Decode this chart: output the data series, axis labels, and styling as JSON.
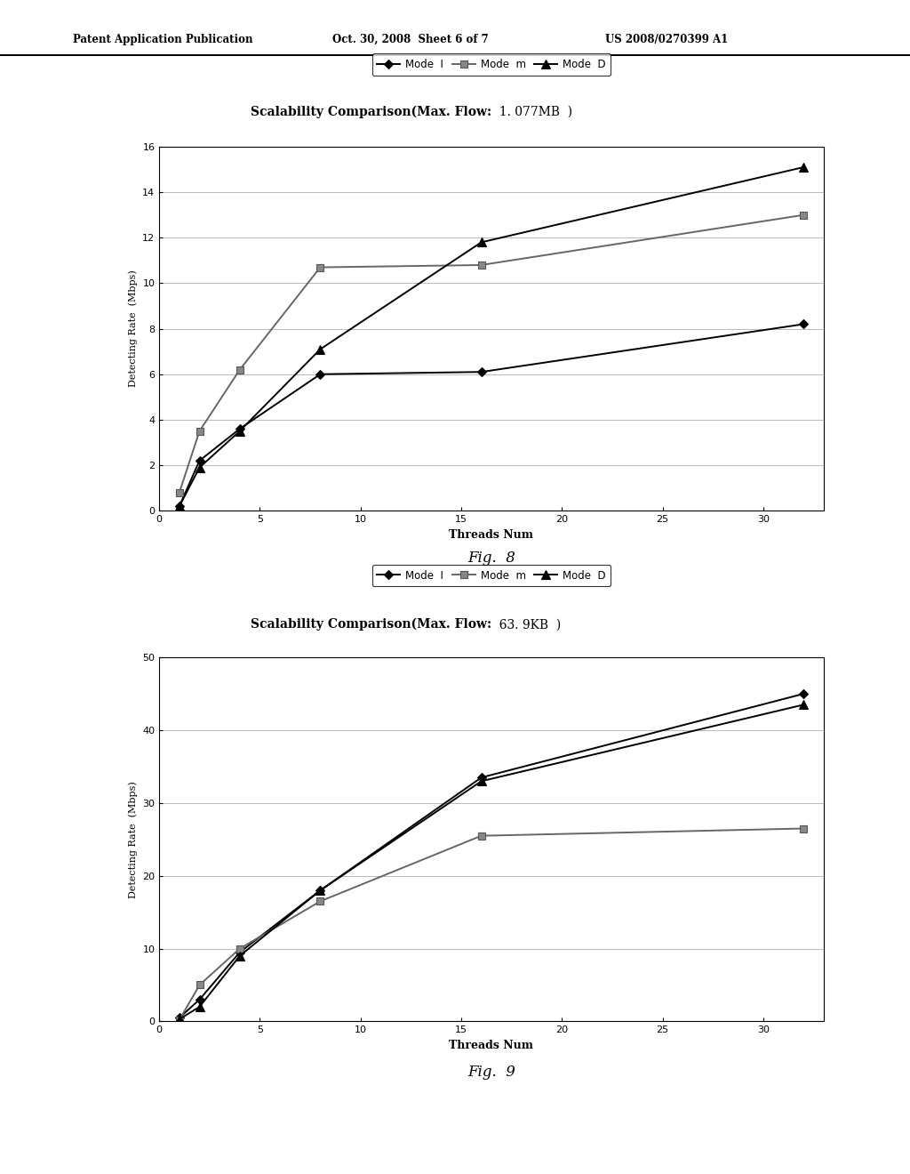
{
  "fig8": {
    "title_bold": "Scalability Comparison(Max. Flow:",
    "title_value": "  1. 077MB  )",
    "xlabel": "Threads Num",
    "ylabel": "Detecting Rate  (Mbps)",
    "ylim": [
      0,
      16
    ],
    "yticks": [
      0,
      2,
      4,
      6,
      8,
      10,
      12,
      14,
      16
    ],
    "xlim": [
      0,
      33
    ],
    "xticks": [
      0,
      5,
      10,
      15,
      20,
      25,
      30
    ],
    "mode_I_x": [
      1,
      2,
      4,
      8,
      16,
      32
    ],
    "mode_I_y": [
      0.2,
      2.2,
      3.6,
      6.0,
      6.1,
      8.2
    ],
    "mode_II_x": [
      1,
      2,
      4,
      8,
      16,
      32
    ],
    "mode_II_y": [
      0.8,
      3.5,
      6.2,
      10.7,
      10.8,
      13.0
    ],
    "mode_III_x": [
      1,
      2,
      4,
      8,
      16,
      32
    ],
    "mode_III_y": [
      0.2,
      1.9,
      3.5,
      7.1,
      11.8,
      15.1
    ],
    "fig_label": "Fig.  8"
  },
  "fig9": {
    "title_bold": "Scalability Comparison(Max. Flow:",
    "title_value": "  63. 9KB  )",
    "xlabel": "Threads Num",
    "ylabel": "Detecting Rate  (Mbps)",
    "ylim": [
      0,
      50
    ],
    "yticks": [
      0,
      10,
      20,
      30,
      40,
      50
    ],
    "xlim": [
      0,
      33
    ],
    "xticks": [
      0,
      5,
      10,
      15,
      20,
      25,
      30
    ],
    "mode_I_x": [
      1,
      2,
      4,
      8,
      16,
      32
    ],
    "mode_I_y": [
      0.5,
      3.0,
      9.5,
      18.0,
      33.5,
      45.0
    ],
    "mode_II_x": [
      1,
      2,
      4,
      8,
      16,
      32
    ],
    "mode_II_y": [
      0.2,
      5.0,
      10.0,
      16.5,
      25.5,
      26.5
    ],
    "mode_III_x": [
      1,
      2,
      4,
      8,
      16,
      32
    ],
    "mode_III_y": [
      0.3,
      2.0,
      9.0,
      18.0,
      33.0,
      43.5
    ],
    "fig_label": "Fig.  9"
  },
  "header_left": "Patent Application Publication",
  "header_mid": "Oct. 30, 2008  Sheet 6 of 7",
  "header_right": "US 2008/0270399 A1",
  "legend_labels": [
    "Mode  I",
    "Mode  m",
    "Mode  D"
  ],
  "background_color": "#ffffff",
  "line_color_I": "#000000",
  "line_color_II": "#666666",
  "line_color_III": "#000000"
}
